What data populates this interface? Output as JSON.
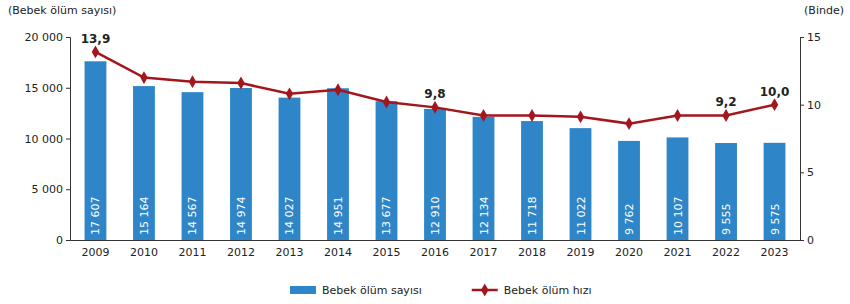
{
  "chart_data": {
    "type": "bar",
    "y_label": "(Bebek ölüm sayısı)",
    "y2_label": "(Binde)",
    "categories": [
      "2009",
      "2010",
      "2011",
      "2012",
      "2013",
      "2014",
      "2015",
      "2016",
      "2017",
      "2018",
      "2019",
      "2020",
      "2021",
      "2022",
      "2023"
    ],
    "series": [
      {
        "name": "Bebek ölüm sayısı",
        "type": "bar",
        "color": "#2e86c8",
        "values": [
          17607,
          15164,
          14567,
          14974,
          14027,
          14951,
          13677,
          12910,
          12134,
          11718,
          11022,
          9762,
          10107,
          9555,
          9575
        ],
        "value_labels": [
          "17 607",
          "15 164",
          "14 567",
          "14 974",
          "14 027",
          "14 951",
          "13 677",
          "12 910",
          "12 134",
          "11 718",
          "11 022",
          "9 762",
          "10 107",
          "9 555",
          "9 575"
        ]
      },
      {
        "name": "Bebek ölüm hızı",
        "type": "line",
        "axis": "y2",
        "color": "#a3161d",
        "marker": "diamond",
        "values": [
          13.9,
          12.0,
          11.7,
          11.6,
          10.8,
          11.1,
          10.2,
          9.8,
          9.2,
          9.2,
          9.1,
          8.6,
          9.2,
          9.2,
          10.0
        ],
        "value_labels": [
          "13,9",
          null,
          null,
          null,
          null,
          null,
          null,
          "9,8",
          null,
          null,
          null,
          null,
          null,
          "9,2",
          "10,0"
        ]
      }
    ],
    "ylim": [
      0,
      20000
    ],
    "yticks": [
      0,
      {
        "value": 5000,
        "label": "5 000"
      },
      {
        "value": 10000,
        "label": "10 000"
      },
      {
        "value": 15000,
        "label": "15 000"
      },
      {
        "value": 20000,
        "label": "20 000"
      }
    ],
    "y2lim": [
      0,
      15
    ],
    "y2ticks": [
      0,
      5,
      10,
      15
    ],
    "data_labels": true,
    "legend": "bottom",
    "grid": false
  }
}
